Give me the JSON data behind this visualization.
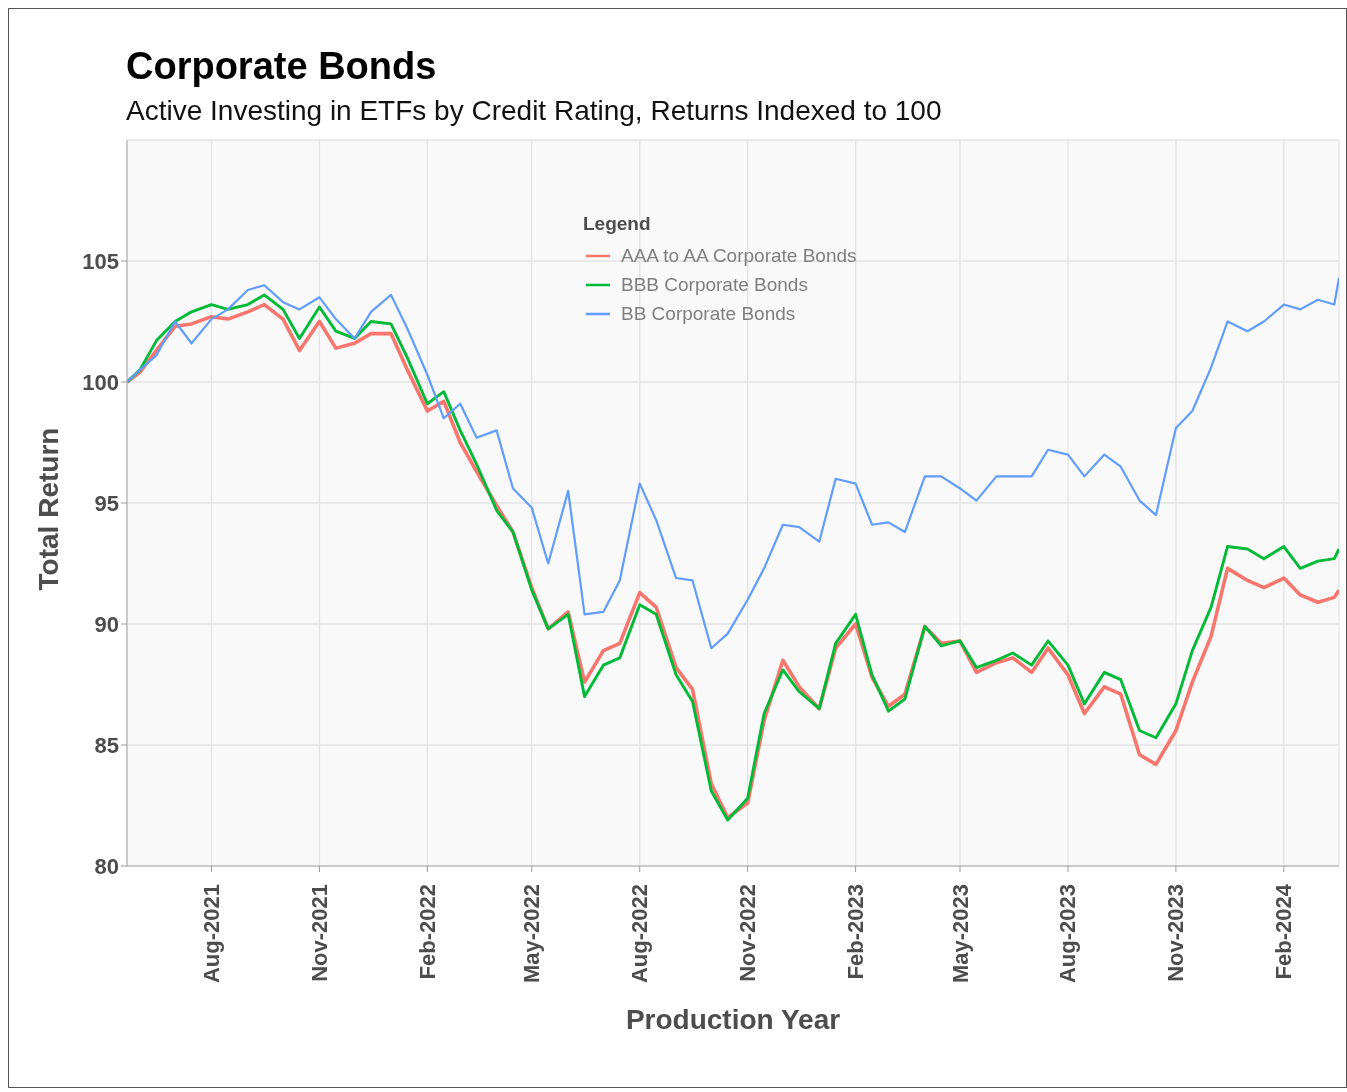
{
  "chart_data": {
    "type": "line",
    "title": "Corporate Bonds",
    "subtitle": "Active Investing in ETFs by Credit Rating, Returns Indexed to 100",
    "xlabel": "Production Year",
    "ylabel": "Total Return",
    "legend_title": "Legend",
    "legend": "top",
    "grid": true,
    "line_style": "solid",
    "marker": "none",
    "x": [
      "2021-05-21",
      "2021-06-01",
      "2021-06-15",
      "2021-07-01",
      "2021-07-15",
      "2021-08-01",
      "2021-08-15",
      "2021-09-01",
      "2021-09-15",
      "2021-10-01",
      "2021-10-15",
      "2021-11-01",
      "2021-11-15",
      "2021-12-01",
      "2021-12-15",
      "2022-01-01",
      "2022-01-15",
      "2022-02-01",
      "2022-02-15",
      "2022-03-01",
      "2022-03-15",
      "2022-04-01",
      "2022-04-15",
      "2022-05-01",
      "2022-05-15",
      "2022-06-01",
      "2022-06-15",
      "2022-07-01",
      "2022-07-15",
      "2022-08-01",
      "2022-08-15",
      "2022-09-01",
      "2022-09-15",
      "2022-10-01",
      "2022-10-15",
      "2022-11-01",
      "2022-11-15",
      "2022-12-01",
      "2022-12-15",
      "2023-01-01",
      "2023-01-15",
      "2023-02-01",
      "2023-02-15",
      "2023-03-01",
      "2023-03-15",
      "2023-04-01",
      "2023-04-15",
      "2023-05-01",
      "2023-05-15",
      "2023-06-01",
      "2023-06-15",
      "2023-07-01",
      "2023-07-15",
      "2023-08-01",
      "2023-08-15",
      "2023-09-01",
      "2023-09-15",
      "2023-10-01",
      "2023-10-15",
      "2023-11-01",
      "2023-11-15",
      "2023-12-01",
      "2023-12-15",
      "2024-01-01",
      "2024-01-15",
      "2024-02-01",
      "2024-02-15",
      "2024-03-01",
      "2024-03-15",
      "2024-03-19"
    ],
    "series": [
      {
        "name": "AAA to AA Corporate Bonds",
        "color": "#f8766d",
        "values": [
          100,
          100.4,
          101.3,
          102.3,
          102.4,
          102.7,
          102.6,
          102.9,
          103.2,
          102.6,
          101.3,
          102.5,
          101.4,
          101.6,
          102,
          102,
          100.5,
          98.8,
          99.2,
          97.5,
          96.3,
          94.9,
          93.8,
          91.5,
          89.8,
          90.5,
          87.6,
          88.9,
          89.2,
          91.3,
          90.7,
          88.2,
          87.3,
          83.4,
          82,
          82.6,
          86,
          88.5,
          87.4,
          86.5,
          89,
          90,
          87.8,
          86.6,
          87.1,
          89.9,
          89.2,
          89.3,
          88,
          88.4,
          88.6,
          88,
          89,
          87.9,
          86.3,
          87.4,
          87.1,
          84.6,
          84.2,
          85.6,
          87.6,
          89.5,
          92.3,
          91.8,
          91.5,
          91.9,
          91.2,
          90.9,
          91.1,
          91.4
        ]
      },
      {
        "name": "BBB Corporate Bonds",
        "color": "#00ba38",
        "values": [
          100,
          100.5,
          101.7,
          102.5,
          102.9,
          103.2,
          103,
          103.2,
          103.6,
          103,
          101.8,
          103.1,
          102.1,
          101.8,
          102.5,
          102.4,
          101,
          99.1,
          99.6,
          98,
          96.6,
          94.7,
          93.8,
          91.4,
          89.8,
          90.4,
          87,
          88.3,
          88.6,
          90.8,
          90.4,
          87.9,
          86.8,
          83.1,
          81.9,
          82.8,
          86.3,
          88.1,
          87.2,
          86.5,
          89.2,
          90.4,
          87.9,
          86.4,
          86.9,
          89.9,
          89.1,
          89.3,
          88.2,
          88.5,
          88.8,
          88.3,
          89.3,
          88.3,
          86.7,
          88,
          87.7,
          85.6,
          85.3,
          86.7,
          88.9,
          90.7,
          93.2,
          93.1,
          92.7,
          93.2,
          92.3,
          92.6,
          92.7,
          93.1
        ]
      },
      {
        "name": "BB Corporate Bonds",
        "color": "#619cff",
        "values": [
          100,
          100.5,
          101.1,
          102.5,
          101.6,
          102.6,
          103,
          103.8,
          104,
          103.3,
          103,
          103.5,
          102.6,
          101.8,
          102.9,
          103.6,
          102.2,
          100.3,
          98.5,
          99.1,
          97.7,
          98,
          95.6,
          94.8,
          92.5,
          95.5,
          90.4,
          90.5,
          91.8,
          95.8,
          94.3,
          91.9,
          91.8,
          89,
          89.6,
          91,
          92.3,
          94.1,
          94,
          93.4,
          96,
          95.8,
          94.1,
          94.2,
          93.8,
          96.1,
          96.1,
          95.6,
          95.1,
          96.1,
          96.1,
          96.1,
          97.2,
          97,
          96.1,
          97,
          96.5,
          95.1,
          94.5,
          98.1,
          98.8,
          100.6,
          102.5,
          102.1,
          102.5,
          103.2,
          103,
          103.4,
          103.2,
          104.3
        ]
      }
    ],
    "xlim": [
      "2021-05-21",
      "2024-03-19"
    ],
    "xticks": [
      {
        "value": "2021-08-01",
        "label": "Aug-2021"
      },
      {
        "value": "2021-11-01",
        "label": "Nov-2021"
      },
      {
        "value": "2022-02-01",
        "label": "Feb-2022"
      },
      {
        "value": "2022-05-01",
        "label": "May-2022"
      },
      {
        "value": "2022-08-01",
        "label": "Aug-2022"
      },
      {
        "value": "2022-11-01",
        "label": "Nov-2022"
      },
      {
        "value": "2023-02-01",
        "label": "Feb-2023"
      },
      {
        "value": "2023-05-01",
        "label": "May-2023"
      },
      {
        "value": "2023-08-01",
        "label": "Aug-2023"
      },
      {
        "value": "2023-11-01",
        "label": "Nov-2023"
      },
      {
        "value": "2024-02-01",
        "label": "Feb-2024"
      }
    ],
    "ylim": [
      80,
      110
    ],
    "yticks": [
      80,
      85,
      90,
      95,
      100,
      105
    ]
  }
}
